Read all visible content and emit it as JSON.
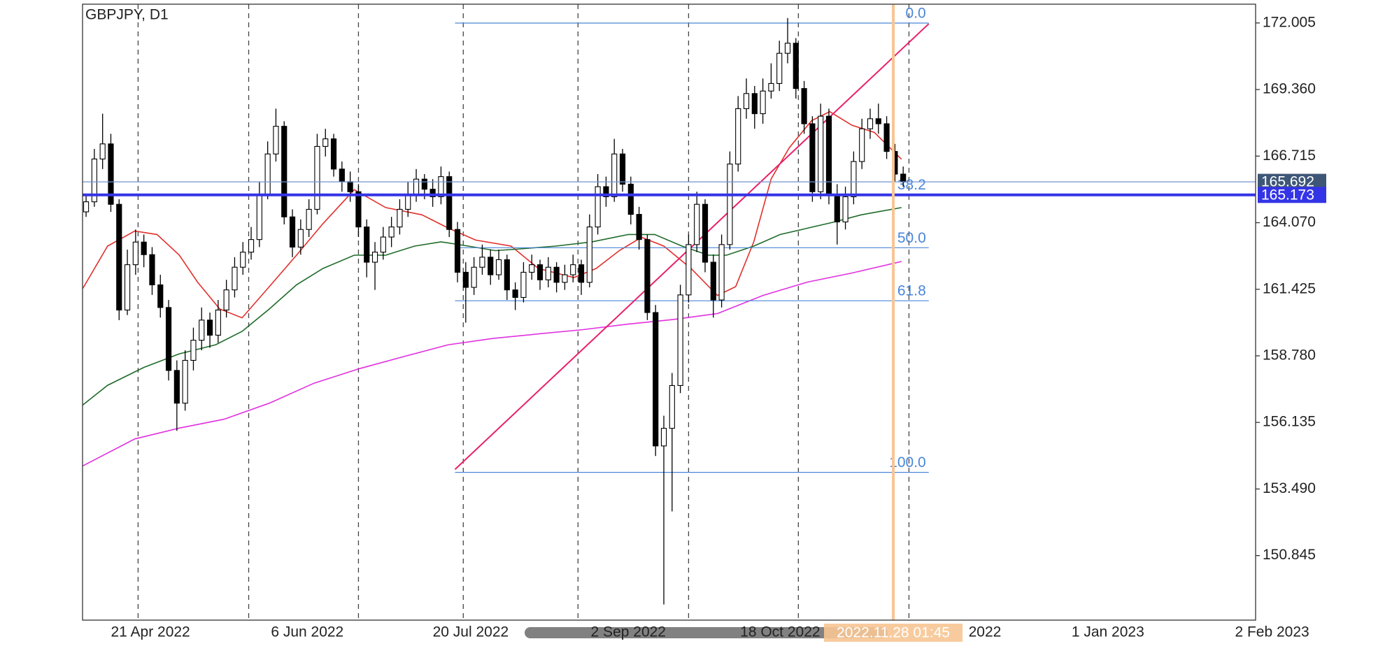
{
  "chart_data": {
    "type": "candlestick",
    "title": "GBPJPY, D1",
    "up_color": "#ffffff",
    "down_color": "#000000",
    "candles": [
      [
        164.5,
        165.2,
        164.3,
        164.9
      ],
      [
        164.9,
        167.0,
        164.7,
        166.6
      ],
      [
        166.6,
        168.4,
        166.2,
        167.2
      ],
      [
        167.2,
        167.6,
        164.5,
        164.8
      ],
      [
        164.8,
        165.0,
        160.2,
        160.6
      ],
      [
        160.6,
        163.0,
        160.4,
        162.4
      ],
      [
        162.4,
        163.8,
        162.0,
        163.3
      ],
      [
        163.3,
        163.6,
        162.3,
        162.8
      ],
      [
        162.8,
        163.1,
        161.2,
        161.6
      ],
      [
        161.6,
        162.0,
        160.3,
        160.7
      ],
      [
        160.7,
        161.0,
        157.8,
        158.2
      ],
      [
        158.2,
        158.6,
        155.8,
        156.9
      ],
      [
        156.9,
        159.0,
        156.6,
        158.6
      ],
      [
        158.6,
        159.9,
        158.2,
        159.4
      ],
      [
        159.4,
        160.7,
        159.0,
        160.2
      ],
      [
        160.2,
        160.5,
        159.1,
        159.6
      ],
      [
        159.6,
        161.0,
        159.3,
        160.6
      ],
      [
        160.6,
        161.8,
        160.3,
        161.4
      ],
      [
        161.4,
        162.7,
        161.1,
        162.3
      ],
      [
        162.3,
        163.3,
        162.0,
        162.9
      ],
      [
        162.9,
        163.9,
        162.6,
        163.4
      ],
      [
        163.4,
        165.7,
        163.1,
        165.2
      ],
      [
        165.2,
        167.3,
        165.0,
        166.8
      ],
      [
        166.8,
        168.6,
        166.5,
        167.9
      ],
      [
        167.9,
        168.1,
        164.0,
        164.3
      ],
      [
        164.3,
        164.6,
        162.7,
        163.1
      ],
      [
        163.1,
        164.2,
        162.8,
        163.8
      ],
      [
        163.8,
        165.0,
        163.5,
        164.6
      ],
      [
        164.6,
        167.6,
        164.4,
        167.1
      ],
      [
        167.1,
        167.8,
        166.7,
        167.4
      ],
      [
        167.4,
        167.6,
        165.9,
        166.2
      ],
      [
        166.2,
        166.5,
        165.3,
        165.7
      ],
      [
        165.7,
        166.1,
        164.9,
        165.3
      ],
      [
        165.3,
        165.6,
        163.5,
        163.9
      ],
      [
        163.9,
        164.2,
        161.9,
        162.5
      ],
      [
        162.5,
        163.3,
        161.4,
        162.9
      ],
      [
        162.9,
        163.9,
        162.6,
        163.5
      ],
      [
        163.5,
        164.3,
        163.1,
        163.9
      ],
      [
        163.9,
        165.0,
        163.6,
        164.6
      ],
      [
        164.6,
        165.7,
        164.3,
        165.2
      ],
      [
        165.2,
        166.2,
        164.9,
        165.8
      ],
      [
        165.8,
        166.0,
        165.0,
        165.4
      ],
      [
        165.4,
        165.8,
        164.7,
        165.1
      ],
      [
        165.1,
        166.3,
        164.8,
        165.9
      ],
      [
        165.9,
        166.1,
        163.5,
        163.8
      ],
      [
        163.8,
        164.1,
        161.7,
        162.1
      ],
      [
        162.1,
        162.5,
        160.1,
        161.5
      ],
      [
        161.5,
        162.7,
        161.2,
        162.3
      ],
      [
        162.3,
        163.2,
        162.0,
        162.7
      ],
      [
        162.7,
        163.0,
        161.6,
        162.0
      ],
      [
        162.0,
        163.0,
        161.8,
        162.6
      ],
      [
        162.6,
        162.8,
        161.0,
        161.4
      ],
      [
        161.4,
        161.7,
        160.6,
        161.1
      ],
      [
        161.1,
        162.5,
        160.9,
        162.1
      ],
      [
        162.1,
        162.8,
        161.8,
        162.4
      ],
      [
        162.4,
        162.6,
        161.4,
        161.8
      ],
      [
        161.8,
        162.7,
        161.5,
        162.3
      ],
      [
        162.3,
        162.5,
        161.3,
        161.7
      ],
      [
        161.7,
        162.4,
        161.4,
        162.0
      ],
      [
        162.0,
        162.8,
        161.7,
        162.4
      ],
      [
        162.4,
        162.6,
        161.2,
        161.7
      ],
      [
        161.7,
        164.4,
        161.5,
        163.9
      ],
      [
        163.9,
        166.0,
        163.6,
        165.5
      ],
      [
        165.5,
        165.9,
        164.7,
        165.1
      ],
      [
        165.1,
        167.4,
        164.9,
        166.8
      ],
      [
        166.8,
        167.0,
        165.3,
        165.6
      ],
      [
        165.6,
        165.9,
        164.0,
        164.4
      ],
      [
        164.4,
        164.7,
        163.0,
        163.4
      ],
      [
        163.4,
        163.6,
        160.2,
        160.5
      ],
      [
        160.5,
        160.8,
        154.8,
        155.2
      ],
      [
        155.2,
        156.4,
        148.9,
        155.9
      ],
      [
        155.9,
        158.1,
        152.6,
        157.6
      ],
      [
        157.6,
        161.6,
        157.3,
        161.2
      ],
      [
        161.2,
        163.6,
        160.9,
        163.2
      ],
      [
        163.2,
        165.3,
        162.9,
        164.8
      ],
      [
        164.8,
        165.0,
        162.1,
        162.5
      ],
      [
        162.5,
        162.8,
        160.3,
        161.0
      ],
      [
        161.0,
        163.6,
        160.7,
        163.2
      ],
      [
        163.2,
        166.9,
        163.0,
        166.4
      ],
      [
        166.4,
        169.1,
        166.1,
        168.6
      ],
      [
        168.6,
        169.8,
        168.2,
        169.2
      ],
      [
        169.2,
        169.5,
        167.8,
        168.4
      ],
      [
        168.4,
        169.8,
        168.0,
        169.3
      ],
      [
        169.3,
        170.4,
        169.0,
        169.6
      ],
      [
        169.6,
        171.3,
        169.3,
        170.8
      ],
      [
        170.8,
        172.2,
        170.4,
        171.2
      ],
      [
        171.2,
        171.4,
        169.0,
        169.4
      ],
      [
        169.4,
        169.7,
        167.6,
        168.0
      ],
      [
        168.0,
        168.3,
        164.9,
        165.3
      ],
      [
        165.3,
        168.8,
        165.0,
        168.3
      ],
      [
        168.3,
        168.6,
        164.8,
        165.2
      ],
      [
        165.2,
        165.6,
        163.2,
        164.1
      ],
      [
        164.1,
        165.5,
        163.8,
        165.1
      ],
      [
        165.1,
        166.9,
        164.8,
        166.5
      ],
      [
        166.5,
        168.2,
        166.2,
        167.8
      ],
      [
        167.8,
        168.6,
        167.4,
        168.2
      ],
      [
        168.2,
        168.8,
        167.6,
        168.0
      ],
      [
        168.0,
        168.3,
        166.6,
        166.9
      ],
      [
        166.9,
        167.2,
        165.7,
        166.0
      ],
      [
        166.0,
        166.3,
        165.5,
        165.69
      ]
    ],
    "moving_averages": [
      {
        "color": "#e0302c",
        "x": [
          -0.4,
          2.6,
          5.9,
          8.6,
          11.3,
          13.5,
          16.2,
          18.9,
          22.2,
          25.5,
          28.7,
          32.5,
          36.3,
          40.7,
          43.9,
          47.2,
          51.5,
          54.8,
          59.1,
          61.8,
          64.6,
          67.3,
          70.0,
          73.3,
          76.5,
          78.7,
          80.9,
          83.0,
          85.2,
          87.9,
          90.1,
          92.8,
          95.5,
          98.8
        ],
        "values": [
          161.46,
          163.14,
          163.74,
          163.6,
          162.78,
          161.71,
          160.64,
          160.29,
          161.53,
          162.78,
          164.03,
          165.38,
          164.67,
          164.38,
          163.85,
          163.38,
          163.14,
          162.25,
          161.89,
          162.25,
          162.96,
          163.49,
          163.14,
          162.25,
          161.18,
          161.53,
          163.31,
          165.81,
          167.05,
          168.12,
          168.48,
          167.94,
          167.66,
          166.59
        ]
      },
      {
        "color": "#1f6b2a",
        "x": [
          -0.4,
          2.6,
          7.0,
          11.3,
          15.7,
          18.9,
          22.2,
          25.5,
          28.7,
          32.5,
          36.3,
          39.8,
          43.0,
          46.3,
          49.6,
          52.6,
          56.9,
          61.3,
          65.7,
          68.9,
          72.2,
          75.4,
          77.6,
          80.9,
          84.1,
          87.4,
          90.7,
          93.9,
          98.8
        ],
        "values": [
          156.83,
          157.61,
          158.32,
          158.86,
          159.22,
          159.75,
          160.64,
          161.6,
          162.25,
          162.78,
          162.78,
          163.14,
          163.31,
          163.14,
          162.96,
          163.03,
          163.14,
          163.31,
          163.6,
          163.6,
          163.14,
          162.78,
          162.78,
          163.14,
          163.6,
          163.85,
          164.1,
          164.38,
          164.67
        ]
      },
      {
        "color": "#e030e0",
        "x": [
          -0.4,
          5.9,
          11.3,
          16.7,
          22.2,
          27.6,
          33.0,
          38.5,
          43.9,
          49.3,
          54.8,
          60.2,
          65.7,
          71.1,
          76.5,
          82.0,
          87.4,
          92.8,
          98.8
        ],
        "values": [
          154.41,
          155.48,
          155.91,
          156.26,
          156.9,
          157.69,
          158.26,
          158.75,
          159.22,
          159.47,
          159.65,
          159.82,
          160.04,
          160.22,
          160.46,
          161.18,
          161.71,
          162.07,
          162.53
        ]
      }
    ],
    "trendline": {
      "color": "#e8206a",
      "x": [
        44.7,
        102.1
      ],
      "values": [
        154.27,
        171.97
      ]
    },
    "fibonacci": {
      "color": "#4a86d8",
      "x": [
        44.7,
        102.1
      ],
      "high": 172.0,
      "low": 154.15,
      "levels": [
        {
          "value": 0,
          "label": "0.0"
        },
        38.2,
        {
          "value": 50,
          "label": "50.0"
        },
        61.8,
        {
          "value": 100,
          "label": "100.0"
        }
      ]
    },
    "hlines": [
      {
        "value": 165.692,
        "label": "165.692",
        "color": "#3f5777",
        "line_color": "#6f93d4",
        "style": "thin"
      },
      {
        "value": 165.173,
        "label": "165.173",
        "color": "#3434e6",
        "line_color": "#3434e6",
        "style": "thick"
      }
    ],
    "separators": [
      6.3,
      19.7,
      33.0,
      45.7,
      59.6,
      73.0,
      86.3,
      99.7
    ],
    "cursor": {
      "x": 97.8,
      "label": "2022.11.28 01:45",
      "color": "#f7c594"
    },
    "xlim": [
      -0.43,
      141.7
    ],
    "xticks": [
      {
        "value": 7.8,
        "label": "21 Apr 2022"
      },
      {
        "value": 26.8,
        "label": "6 Jun 2022"
      },
      {
        "value": 46.6,
        "label": "20 Jul 2022"
      },
      {
        "value": 65.7,
        "label": "2 Sep 2022"
      },
      {
        "value": 84.1,
        "label": "18 Oct 2022"
      },
      {
        "value": 108.9,
        "label": "2022"
      },
      {
        "value": 123.8,
        "label": "1 Jan 2023"
      },
      {
        "value": 143.7,
        "label": "2 Feb 2023"
      }
    ],
    "ylim": [
      148.28,
      172.75
    ],
    "yticks": [
      172.005,
      {
        "value": 169.36,
        "label": "169.360"
      },
      166.715,
      {
        "value": 164.07,
        "label": "164.070"
      },
      161.425,
      {
        "value": 158.78,
        "label": "158.780"
      },
      156.135,
      {
        "value": 153.49,
        "label": "153.490"
      },
      150.845
    ]
  }
}
